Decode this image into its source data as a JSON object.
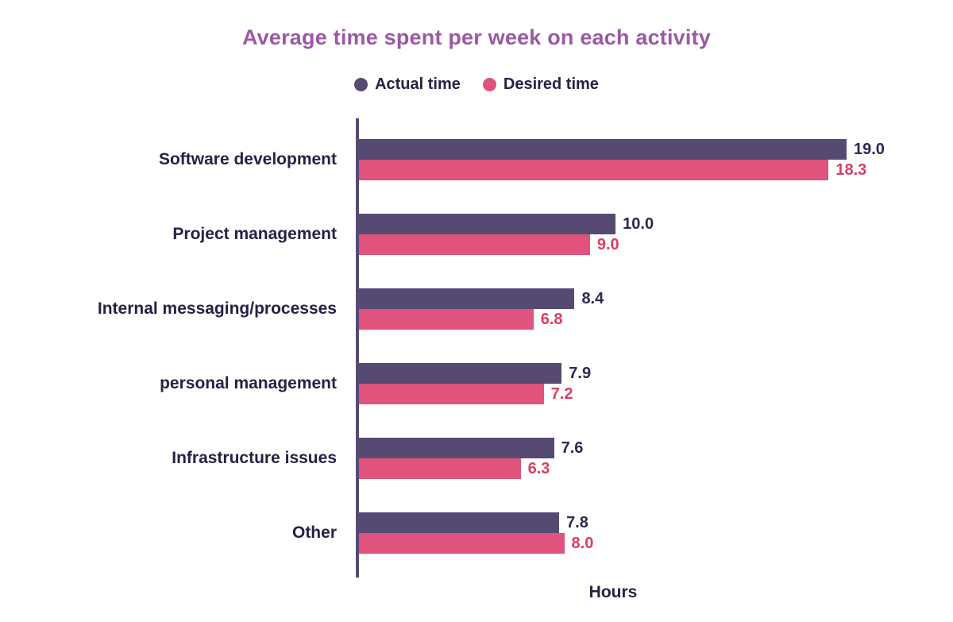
{
  "chart_data": {
    "type": "bar",
    "orientation": "horizontal",
    "title": "Average time spent per week on each activity",
    "xlabel": "Hours",
    "ylabel": "",
    "categories": [
      "Software development",
      "Project management",
      "Internal messaging/processes",
      "personal management",
      "Infrastructure issues",
      "Other"
    ],
    "series": [
      {
        "name": "Actual time",
        "color": "#564a72",
        "label_color": "#2b2851",
        "values": [
          19.0,
          10.0,
          8.4,
          7.9,
          7.6,
          7.8
        ]
      },
      {
        "name": "Desired time",
        "color": "#e0537c",
        "label_color": "#dc3d62",
        "values": [
          18.3,
          9.0,
          6.8,
          7.2,
          6.3,
          8.0
        ]
      }
    ],
    "xlim": [
      0,
      19
    ],
    "grid": false,
    "legend_position": "top",
    "value_label_format": "one-decimal"
  },
  "colors": {
    "title": "#9c58a4",
    "text": "#262144",
    "axis": "#564a72",
    "background": "#ffffff"
  }
}
